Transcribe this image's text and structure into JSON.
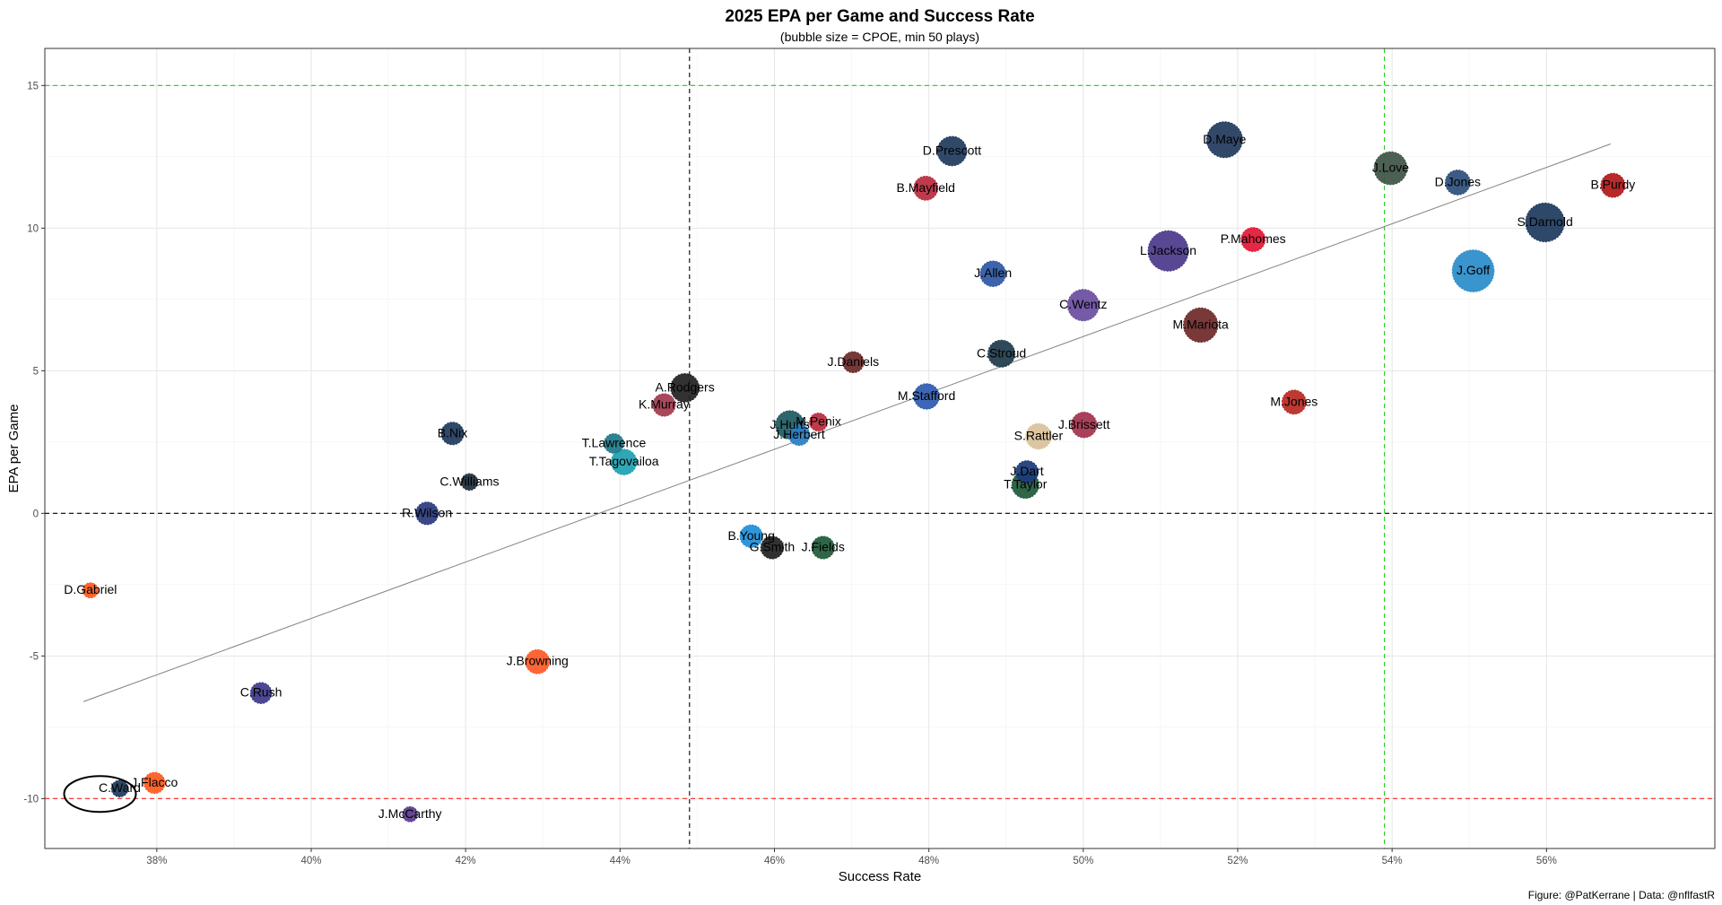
{
  "chart_data": {
    "type": "scatter",
    "title": "2025 EPA per Game and Success Rate",
    "subtitle": "(bubble size = CPOE, min 50 plays)",
    "xlabel": "Success Rate",
    "ylabel": "EPA per Game",
    "caption": "Figure: @PatKerrane | Data: @nflfastR",
    "xlim": [
      0.3655,
      0.5818
    ],
    "ylim": [
      -11.75,
      16.3
    ],
    "x_ticks": [
      {
        "value": 0.38,
        "label": "38%"
      },
      {
        "value": 0.4,
        "label": "40%"
      },
      {
        "value": 0.42,
        "label": "42%"
      },
      {
        "value": 0.44,
        "label": "44%"
      },
      {
        "value": 0.46,
        "label": "46%"
      },
      {
        "value": 0.48,
        "label": "48%"
      },
      {
        "value": 0.5,
        "label": "50%"
      },
      {
        "value": 0.52,
        "label": "52%"
      },
      {
        "value": 0.54,
        "label": "54%"
      },
      {
        "value": 0.56,
        "label": "56%"
      }
    ],
    "y_ticks": [
      {
        "value": -10,
        "label": "-10"
      },
      {
        "value": -5,
        "label": "-5"
      },
      {
        "value": 0,
        "label": "0"
      },
      {
        "value": 5,
        "label": "5"
      },
      {
        "value": 10,
        "label": "10"
      },
      {
        "value": 15,
        "label": "15"
      }
    ],
    "grid": true,
    "reference_lines": [
      {
        "axis": "x",
        "value": 0.449,
        "color": "#000000",
        "style": "dashed"
      },
      {
        "axis": "x",
        "value": 0.539,
        "color": "#22cc22",
        "style": "dashed"
      },
      {
        "axis": "y",
        "value": 0,
        "color": "#000000",
        "style": "dashed"
      },
      {
        "axis": "y",
        "value": 15,
        "color": "#22cc22",
        "style": "dashed"
      },
      {
        "axis": "y",
        "value": -10,
        "color": "#ff2222",
        "style": "dashed"
      }
    ],
    "trend_line": {
      "x": [
        0.3705,
        0.5683
      ],
      "y": [
        -6.6,
        12.95
      ],
      "color": "#7f7f7f"
    },
    "highlight": {
      "player": "C.Ward",
      "shape": "ellipse"
    },
    "points": [
      {
        "player": "D.Maye",
        "success_rate": 0.5183,
        "epa_per_game": 13.1,
        "cpoe_size": 10.0,
        "color": "#223a5e"
      },
      {
        "player": "D.Prescott",
        "success_rate": 0.483,
        "epa_per_game": 12.7,
        "cpoe_size": 7.8,
        "color": "#203b5e"
      },
      {
        "player": "J.Love",
        "success_rate": 0.5398,
        "epa_per_game": 12.1,
        "cpoe_size": 9.0,
        "color": "#3f5447"
      },
      {
        "player": "D.Jones",
        "success_rate": 0.5485,
        "epa_per_game": 11.6,
        "cpoe_size": 6.3,
        "color": "#2d4f7c"
      },
      {
        "player": "B.Purdy",
        "success_rate": 0.5686,
        "epa_per_game": 11.5,
        "cpoe_size": 6.0,
        "color": "#b3191b"
      },
      {
        "player": "B.Mayfield",
        "success_rate": 0.4796,
        "epa_per_game": 11.4,
        "cpoe_size": 6.0,
        "color": "#b92c3e"
      },
      {
        "player": "S.Darnold",
        "success_rate": 0.5598,
        "epa_per_game": 10.2,
        "cpoe_size": 11.0,
        "color": "#1e3a5f"
      },
      {
        "player": "P.Mahomes",
        "success_rate": 0.522,
        "epa_per_game": 9.6,
        "cpoe_size": 6.0,
        "color": "#e31837"
      },
      {
        "player": "L.Jackson",
        "success_rate": 0.511,
        "epa_per_game": 9.2,
        "cpoe_size": 11.5,
        "color": "#4b3a8c"
      },
      {
        "player": "J.Goff",
        "success_rate": 0.5505,
        "epa_per_game": 8.5,
        "cpoe_size": 12.0,
        "color": "#2b8cc9"
      },
      {
        "player": "J.Allen",
        "success_rate": 0.4883,
        "epa_per_game": 8.4,
        "cpoe_size": 6.5,
        "color": "#2d57a5"
      },
      {
        "player": "C.Wentz",
        "success_rate": 0.5,
        "epa_per_game": 7.3,
        "cpoe_size": 8.5,
        "color": "#6a4fa0"
      },
      {
        "player": "M.Mariota",
        "success_rate": 0.5152,
        "epa_per_game": 6.6,
        "cpoe_size": 9.5,
        "color": "#6f2a2a"
      },
      {
        "player": "C.Stroud",
        "success_rate": 0.4894,
        "epa_per_game": 5.6,
        "cpoe_size": 7.0,
        "color": "#1f3b4b"
      },
      {
        "player": "J.Daniels",
        "success_rate": 0.4702,
        "epa_per_game": 5.3,
        "cpoe_size": 5.0,
        "color": "#6b2a2a"
      },
      {
        "player": "A.Rodgers",
        "success_rate": 0.4484,
        "epa_per_game": 4.4,
        "cpoe_size": 7.5,
        "color": "#222222"
      },
      {
        "player": "M.Stafford",
        "success_rate": 0.4797,
        "epa_per_game": 4.1,
        "cpoe_size": 6.5,
        "color": "#2f5ab0"
      },
      {
        "player": "M.Jones",
        "success_rate": 0.5273,
        "epa_per_game": 3.9,
        "cpoe_size": 6.0,
        "color": "#b92a22"
      },
      {
        "player": "K.Murray",
        "success_rate": 0.4457,
        "epa_per_game": 3.8,
        "cpoe_size": 5.5,
        "color": "#a23a4f"
      },
      {
        "player": "J.Hurts",
        "success_rate": 0.462,
        "epa_per_game": 3.1,
        "cpoe_size": 7.5,
        "color": "#1f5a62"
      },
      {
        "player": "M.Penix",
        "success_rate": 0.4657,
        "epa_per_game": 3.2,
        "cpoe_size": 4.0,
        "color": "#b92c3e"
      },
      {
        "player": "J.Brissett",
        "success_rate": 0.5001,
        "epa_per_game": 3.1,
        "cpoe_size": 6.5,
        "color": "#a3334f"
      },
      {
        "player": "B.Nix",
        "success_rate": 0.4183,
        "epa_per_game": 2.8,
        "cpoe_size": 5.5,
        "color": "#203a5e"
      },
      {
        "player": "J.Herbert",
        "success_rate": 0.4632,
        "epa_per_game": 2.75,
        "cpoe_size": 5.0,
        "color": "#2a7fc4"
      },
      {
        "player": "S.Rattler",
        "success_rate": 0.4942,
        "epa_per_game": 2.7,
        "cpoe_size": 6.5,
        "color": "#d9c29a"
      },
      {
        "player": "T.Lawrence",
        "success_rate": 0.4392,
        "epa_per_game": 2.45,
        "cpoe_size": 4.5,
        "color": "#1d7a8a"
      },
      {
        "player": "T.Tagovailoa",
        "success_rate": 0.4405,
        "epa_per_game": 1.8,
        "cpoe_size": 6.5,
        "color": "#1ea0b0"
      },
      {
        "player": "J.Dart",
        "success_rate": 0.4927,
        "epa_per_game": 1.45,
        "cpoe_size": 5.5,
        "color": "#1b3a7a"
      },
      {
        "player": "C.Williams",
        "success_rate": 0.4205,
        "epa_per_game": 1.1,
        "cpoe_size": 3.5,
        "color": "#1f2e3e"
      },
      {
        "player": "T.Taylor",
        "success_rate": 0.4925,
        "epa_per_game": 1.0,
        "cpoe_size": 7.0,
        "color": "#1f5a3a"
      },
      {
        "player": "R.Wilson",
        "success_rate": 0.415,
        "epa_per_game": 0.0,
        "cpoe_size": 5.5,
        "color": "#2b3a80"
      },
      {
        "player": "B.Young",
        "success_rate": 0.457,
        "epa_per_game": -0.8,
        "cpoe_size": 5.5,
        "color": "#1e8ed6"
      },
      {
        "player": "G.Smith",
        "success_rate": 0.4597,
        "epa_per_game": -1.2,
        "cpoe_size": 5.5,
        "color": "#222222"
      },
      {
        "player": "J.Fields",
        "success_rate": 0.4663,
        "epa_per_game": -1.2,
        "cpoe_size": 5.5,
        "color": "#1f5a3a"
      },
      {
        "player": "D.Gabriel",
        "success_rate": 0.3714,
        "epa_per_game": -2.7,
        "cpoe_size": 3.0,
        "color": "#ff5a1f"
      },
      {
        "player": "J.Browning",
        "success_rate": 0.4293,
        "epa_per_game": -5.2,
        "cpoe_size": 6.0,
        "color": "#ff5a26"
      },
      {
        "player": "C.Rush",
        "success_rate": 0.3935,
        "epa_per_game": -6.3,
        "cpoe_size": 5.0,
        "color": "#3f3a8c"
      },
      {
        "player": "J.Flacco",
        "success_rate": 0.3797,
        "epa_per_game": -9.45,
        "cpoe_size": 5.0,
        "color": "#ff5a1f"
      },
      {
        "player": "C.Ward",
        "success_rate": 0.3752,
        "epa_per_game": -9.65,
        "cpoe_size": 3.5,
        "color": "#1e3a5a"
      },
      {
        "player": "J.McCarthy",
        "success_rate": 0.4128,
        "epa_per_game": -10.55,
        "cpoe_size": 3.0,
        "color": "#5a3a8c"
      }
    ]
  }
}
